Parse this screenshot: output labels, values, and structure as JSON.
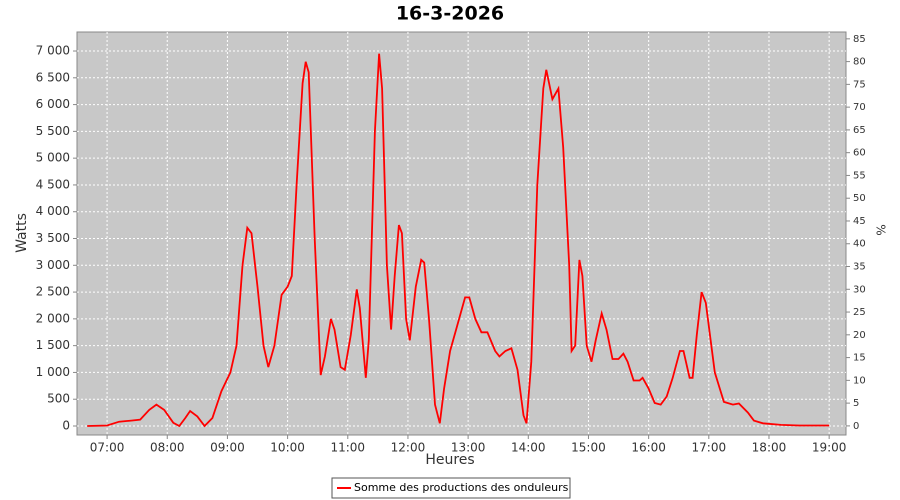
{
  "chart_data": {
    "type": "line",
    "title": "16-3-2026",
    "xlabel": "Heures",
    "ylabel": "Watts",
    "y2label": "%",
    "x": [
      6.67,
      7.0,
      7.2,
      7.4,
      7.55,
      7.7,
      7.82,
      7.95,
      8.1,
      8.2,
      8.3,
      8.38,
      8.5,
      8.62,
      8.75,
      8.9,
      9.05,
      9.15,
      9.25,
      9.33,
      9.4,
      9.5,
      9.6,
      9.68,
      9.78,
      9.9,
      10.0,
      10.07,
      10.15,
      10.25,
      10.3,
      10.35,
      10.45,
      10.55,
      10.62,
      10.72,
      10.78,
      10.88,
      10.95,
      11.05,
      11.15,
      11.2,
      11.3,
      11.35,
      11.45,
      11.52,
      11.57,
      11.65,
      11.72,
      11.78,
      11.85,
      11.9,
      11.97,
      12.03,
      12.13,
      12.22,
      12.27,
      12.35,
      12.45,
      12.53,
      12.6,
      12.7,
      12.8,
      12.95,
      13.02,
      13.12,
      13.22,
      13.32,
      13.45,
      13.52,
      13.62,
      13.72,
      13.82,
      13.92,
      13.97,
      14.05,
      14.15,
      14.25,
      14.3,
      14.4,
      14.5,
      14.58,
      14.68,
      14.72,
      14.78,
      14.85,
      14.9,
      14.97,
      15.05,
      15.12,
      15.22,
      15.3,
      15.4,
      15.5,
      15.58,
      15.65,
      15.75,
      15.85,
      15.9,
      16.0,
      16.1,
      16.2,
      16.3,
      16.4,
      16.52,
      16.58,
      16.68,
      16.73,
      16.8,
      16.88,
      16.95,
      17.1,
      17.25,
      17.4,
      17.5,
      17.65,
      17.75,
      17.9,
      18.2,
      18.5,
      19.0
    ],
    "series": [
      {
        "name": "Somme des productions des onduleurs",
        "color": "#ff0000",
        "values": [
          0,
          10,
          80,
          100,
          120,
          300,
          400,
          300,
          60,
          0,
          150,
          280,
          180,
          0,
          150,
          650,
          1000,
          1500,
          3000,
          3700,
          3600,
          2600,
          1500,
          1100,
          1500,
          2450,
          2600,
          2800,
          4500,
          6400,
          6800,
          6600,
          3500,
          950,
          1300,
          2000,
          1800,
          1100,
          1050,
          1700,
          2550,
          2200,
          900,
          1600,
          5500,
          6950,
          6300,
          3000,
          1800,
          2800,
          3750,
          3600,
          2000,
          1600,
          2600,
          3100,
          3050,
          2000,
          400,
          50,
          700,
          1400,
          1800,
          2400,
          2400,
          2000,
          1750,
          1750,
          1400,
          1300,
          1400,
          1450,
          1050,
          200,
          50,
          1200,
          4500,
          6300,
          6650,
          6100,
          6300,
          5200,
          3000,
          1400,
          1500,
          3100,
          2800,
          1500,
          1200,
          1600,
          2100,
          1800,
          1250,
          1250,
          1350,
          1200,
          850,
          850,
          900,
          700,
          430,
          400,
          550,
          900,
          1400,
          1400,
          900,
          900,
          1700,
          2500,
          2300,
          1000,
          450,
          400,
          420,
          250,
          100,
          50,
          20,
          10,
          10
        ]
      }
    ],
    "xlim": [
      6.5,
      19.28
    ],
    "xticks": [
      {
        "value": 7,
        "label": "07:00"
      },
      {
        "value": 8,
        "label": "08:00"
      },
      {
        "value": 9,
        "label": "09:00"
      },
      {
        "value": 10,
        "label": "10:00"
      },
      {
        "value": 11,
        "label": "11:00"
      },
      {
        "value": 12,
        "label": "12:00"
      },
      {
        "value": 13,
        "label": "13:00"
      },
      {
        "value": 14,
        "label": "14:00"
      },
      {
        "value": 15,
        "label": "15:00"
      },
      {
        "value": 16,
        "label": "16:00"
      },
      {
        "value": 17,
        "label": "17:00"
      },
      {
        "value": 18,
        "label": "18:00"
      },
      {
        "value": 19,
        "label": "19:00"
      }
    ],
    "ylim": [
      -168,
      7355
    ],
    "yticks": [
      0,
      500,
      {
        "value": 1000,
        "label": "1 000"
      },
      {
        "value": 1500,
        "label": "1 500"
      },
      {
        "value": 2000,
        "label": "2 000"
      },
      {
        "value": 2500,
        "label": "2 500"
      },
      {
        "value": 3000,
        "label": "3 000"
      },
      {
        "value": 3500,
        "label": "3 500"
      },
      {
        "value": 4000,
        "label": "4 000"
      },
      {
        "value": 4500,
        "label": "4 500"
      },
      {
        "value": 5000,
        "label": "5 000"
      },
      {
        "value": 5500,
        "label": "5 500"
      },
      {
        "value": 6000,
        "label": "6 000"
      },
      {
        "value": 6500,
        "label": "6 500"
      },
      {
        "value": 7000,
        "label": "7 000"
      }
    ],
    "y2lim": [
      -2,
      86.5
    ],
    "y2ticks": [
      0,
      5,
      10,
      15,
      20,
      25,
      30,
      35,
      40,
      45,
      50,
      55,
      60,
      65,
      70,
      75,
      80,
      85
    ],
    "grid": true,
    "background": "#c8c8c8",
    "legend": "bottom"
  }
}
